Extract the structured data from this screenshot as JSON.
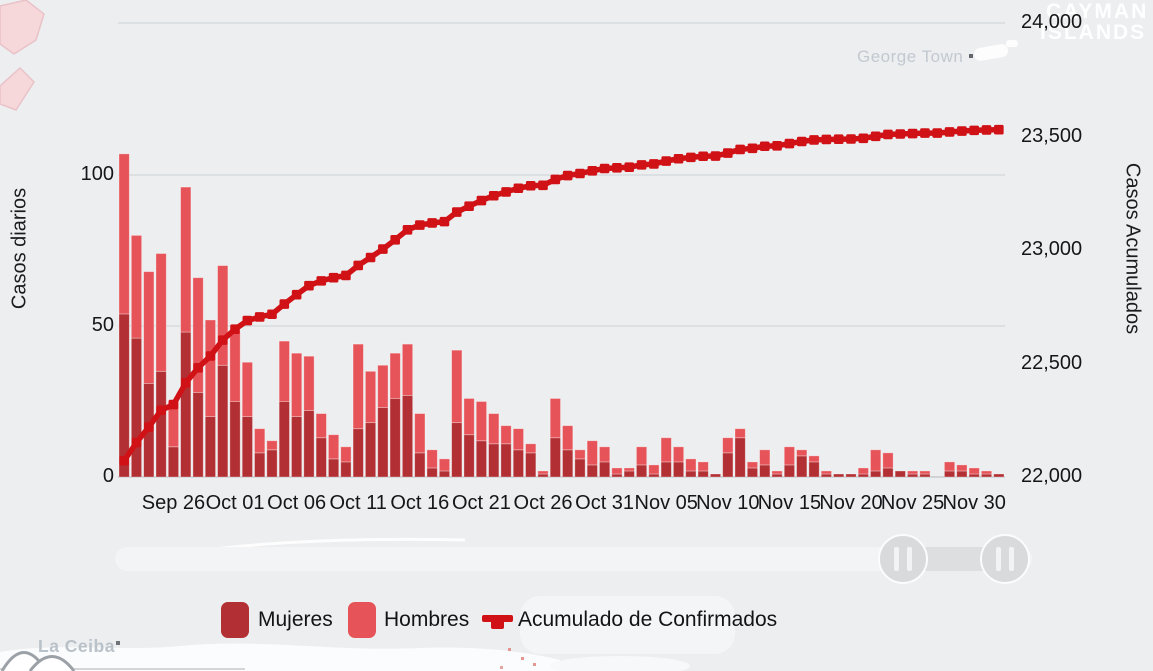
{
  "map": {
    "watermark_line1": "CAYMAN",
    "watermark_line2": "ISLANDS",
    "george_town": "George Town",
    "la_ceiba": "La Ceiba"
  },
  "axes": {
    "left": {
      "title": "Casos diarios",
      "ticks": [
        {
          "label": "100",
          "value": 100
        },
        {
          "label": "50",
          "value": 50
        },
        {
          "label": "0",
          "value": 0
        }
      ],
      "range": [
        0,
        150
      ]
    },
    "right": {
      "title": "Casos Acumulados",
      "ticks": [
        {
          "label": "24,000",
          "value": 24000
        },
        {
          "label": "23,500",
          "value": 23500
        },
        {
          "label": "23,000",
          "value": 23000
        },
        {
          "label": "22,500",
          "value": 22500
        },
        {
          "label": "22,000",
          "value": 22000
        }
      ],
      "range": [
        22000,
        24000
      ]
    },
    "x_tick_labels": [
      "Sep 26",
      "Oct 01",
      "Oct 06",
      "Oct 11",
      "Oct 16",
      "Oct 21",
      "Oct 26",
      "Oct 31",
      "Nov 05",
      "Nov 10",
      "Nov 15",
      "Nov 20",
      "Nov 25",
      "Nov 30"
    ],
    "x_first_tick_index": 4,
    "x_tick_step": 5
  },
  "legend": {
    "items": [
      {
        "label": "Mujeres",
        "color": "#b23034",
        "type": "square"
      },
      {
        "label": "Hombres",
        "color": "#e65459",
        "type": "square"
      },
      {
        "label": "Acumulado de Confirmados",
        "color": "#d01217",
        "type": "line"
      }
    ]
  },
  "chart_data": {
    "type": "bar",
    "subtype": "stacked-bars-with-cumulative-line",
    "categories": [
      "Sep 22",
      "Sep 23",
      "Sep 24",
      "Sep 25",
      "Sep 26",
      "Sep 27",
      "Sep 28",
      "Sep 29",
      "Sep 30",
      "Oct 01",
      "Oct 02",
      "Oct 03",
      "Oct 04",
      "Oct 05",
      "Oct 06",
      "Oct 07",
      "Oct 08",
      "Oct 09",
      "Oct 10",
      "Oct 11",
      "Oct 12",
      "Oct 13",
      "Oct 14",
      "Oct 15",
      "Oct 16",
      "Oct 17",
      "Oct 18",
      "Oct 19",
      "Oct 20",
      "Oct 21",
      "Oct 22",
      "Oct 23",
      "Oct 24",
      "Oct 25",
      "Oct 26",
      "Oct 27",
      "Oct 28",
      "Oct 29",
      "Oct 30",
      "Oct 31",
      "Nov 01",
      "Nov 02",
      "Nov 03",
      "Nov 04",
      "Nov 05",
      "Nov 06",
      "Nov 07",
      "Nov 08",
      "Nov 09",
      "Nov 10",
      "Nov 11",
      "Nov 12",
      "Nov 13",
      "Nov 14",
      "Nov 15",
      "Nov 16",
      "Nov 17",
      "Nov 18",
      "Nov 19",
      "Nov 20",
      "Nov 21",
      "Nov 22",
      "Nov 23",
      "Nov 24",
      "Nov 25",
      "Nov 26",
      "Nov 27",
      "Nov 28",
      "Nov 29",
      "Nov 30",
      "Dec 01",
      "Dec 02"
    ],
    "series": [
      {
        "name": "Mujeres",
        "color": "#b23034",
        "values": [
          54,
          46,
          31,
          35,
          10,
          48,
          28,
          20,
          37,
          25,
          20,
          8,
          9,
          25,
          20,
          22,
          13,
          6,
          5,
          16,
          18,
          23,
          26,
          27,
          8,
          3,
          2,
          18,
          14,
          12,
          11,
          11,
          9,
          8,
          1,
          13,
          9,
          6,
          4,
          5,
          1,
          2,
          4,
          1,
          5,
          5,
          2,
          2,
          1,
          8,
          13,
          3,
          4,
          1,
          4,
          7,
          5,
          1,
          1,
          1,
          1,
          2,
          3,
          2,
          1,
          1,
          0,
          2,
          2,
          1,
          1,
          1
        ]
      },
      {
        "name": "Hombres",
        "color": "#e65459",
        "values": [
          53,
          34,
          37,
          39,
          15,
          48,
          38,
          32,
          33,
          23,
          18,
          8,
          3,
          20,
          21,
          18,
          8,
          8,
          5,
          28,
          17,
          14,
          15,
          17,
          13,
          6,
          4,
          24,
          12,
          13,
          10,
          6,
          7,
          3,
          1,
          13,
          8,
          3,
          8,
          5,
          2,
          1,
          6,
          3,
          8,
          5,
          4,
          3,
          0,
          5,
          3,
          2,
          5,
          1,
          6,
          2,
          2,
          1,
          0,
          0,
          2,
          7,
          5,
          0,
          1,
          1,
          0,
          3,
          2,
          2,
          1,
          0
        ]
      },
      {
        "name": "Acumulado de Confirmados",
        "type": "line",
        "color": "#d01217",
        "start_value": 21965,
        "end_value": 23530
      }
    ],
    "ylabel": "Casos diarios",
    "ylabel_right": "Casos Acumulados",
    "ylim_left": [
      0,
      150
    ],
    "ylim_right": [
      22000,
      24000
    ],
    "grid": "horizontal",
    "legend_position": "bottom"
  }
}
